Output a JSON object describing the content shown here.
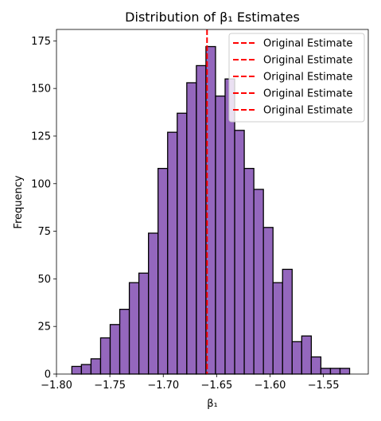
{
  "chart_data": {
    "type": "bar",
    "title": "Distribution of β₁ Estimates",
    "xlabel": "β₁",
    "ylabel": "Frequency",
    "xlim": [
      -1.8,
      -1.508
    ],
    "ylim": [
      0,
      181
    ],
    "x_ticks": [
      -1.8,
      -1.75,
      -1.7,
      -1.65,
      -1.6,
      -1.55
    ],
    "x_tick_labels": [
      "−1.80",
      "−1.75",
      "−1.70",
      "−1.65",
      "−1.60",
      "−1.55"
    ],
    "y_ticks": [
      0,
      25,
      50,
      75,
      100,
      125,
      150,
      175
    ],
    "y_tick_labels": [
      "0",
      "25",
      "50",
      "75",
      "100",
      "125",
      "150",
      "175"
    ],
    "bin_start": -1.7856,
    "bin_width": 0.00897,
    "counts": [
      4,
      5,
      8,
      19,
      26,
      34,
      48,
      53,
      74,
      108,
      127,
      137,
      153,
      162,
      172,
      146,
      155,
      128,
      108,
      97,
      77,
      48,
      55,
      17,
      20,
      9,
      3,
      3,
      3
    ],
    "bar_color": "#9467bd",
    "edge_color": "#000000",
    "reference_line": {
      "x": -1.659,
      "color": "#ff0000",
      "style": "dashed"
    },
    "legend": {
      "position": "upper right",
      "entries": [
        "Original Estimate",
        "Original Estimate",
        "Original Estimate",
        "Original Estimate",
        "Original Estimate"
      ]
    }
  }
}
